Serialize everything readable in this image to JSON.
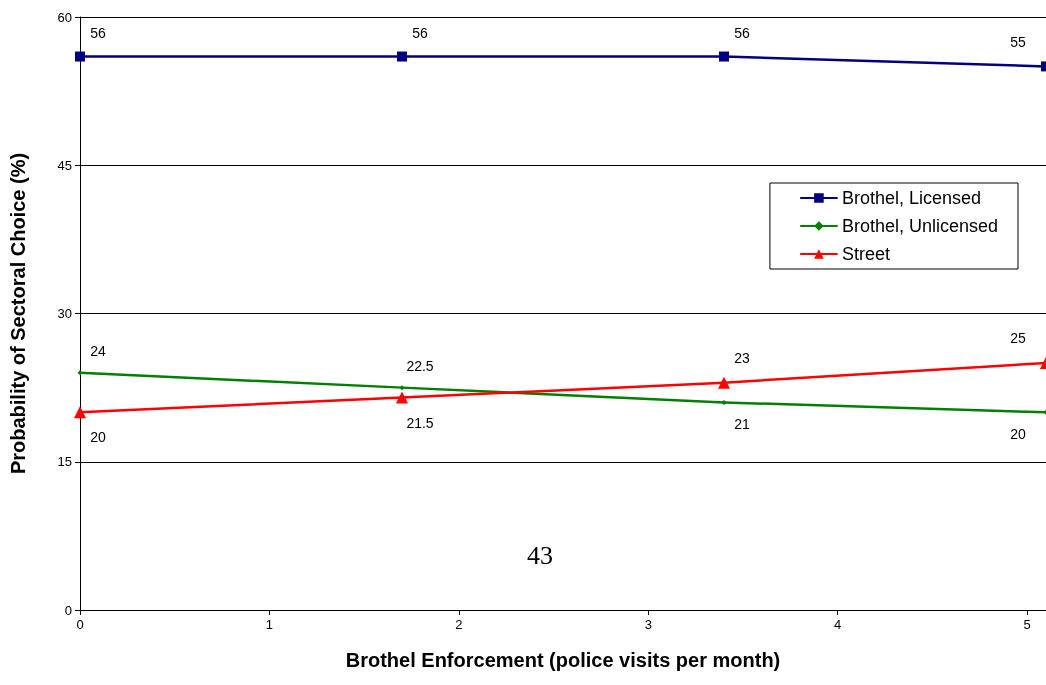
{
  "chart_data": {
    "type": "line",
    "xlabel": "Brothel Enforcement (police visits per month)",
    "ylabel": "Probability of Sectoral Choice (%)",
    "x": [
      0,
      1.7,
      3.4,
      5.1
    ],
    "series": [
      {
        "name": "Brothel, Licensed",
        "color": "#000080",
        "values": [
          56,
          56,
          56,
          55
        ],
        "marker": "square"
      },
      {
        "name": "Brothel, Unlicensed",
        "color": "#008000",
        "values": [
          24,
          22.5,
          21,
          20
        ],
        "marker": "diamond"
      },
      {
        "name": "Street",
        "color": "#ff0000",
        "values": [
          20,
          21.5,
          23,
          25
        ],
        "marker": "triangle"
      }
    ],
    "xlim": [
      0,
      5.1
    ],
    "xticks": [
      0,
      1,
      2,
      3,
      4,
      5
    ],
    "ylim": [
      0,
      60
    ],
    "yticks": [
      0,
      15,
      30,
      45,
      60
    ],
    "grid": "y",
    "legend": "top right",
    "data_labels": true,
    "annotations": [
      "43"
    ]
  }
}
